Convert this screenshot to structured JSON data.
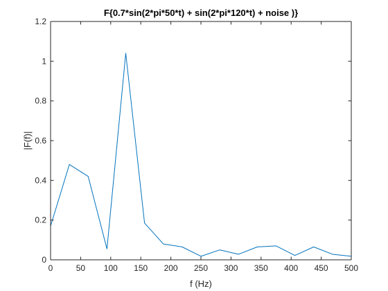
{
  "chart_data": {
    "type": "line",
    "title": "F{0.7*sin(2*pi*50*t) + sin(2*pi*120*t) + noise )}",
    "xlabel": "f (Hz)",
    "ylabel": "|F(f)|",
    "xlim": [
      0,
      500
    ],
    "ylim": [
      0,
      1.2
    ],
    "x_ticks": [
      0,
      50,
      100,
      150,
      200,
      250,
      300,
      350,
      400,
      450,
      500
    ],
    "x_tick_labels": [
      "0",
      "50",
      "100",
      "150",
      "200",
      "250",
      "300",
      "350",
      "400",
      "450",
      "500"
    ],
    "y_ticks": [
      0,
      0.2,
      0.4,
      0.6,
      0.8,
      1.0,
      1.2
    ],
    "y_tick_labels": [
      "0",
      "0.2",
      "0.4",
      "0.6",
      "0.8",
      "1",
      "1.2"
    ],
    "grid": false,
    "series": [
      {
        "color": "#0072BD",
        "x": [
          0,
          31.25,
          62.5,
          93.75,
          125,
          156.25,
          187.5,
          218.75,
          250,
          281.25,
          312.5,
          343.75,
          375,
          406.25,
          437.5,
          468.75,
          500
        ],
        "y": [
          0.17,
          0.48,
          0.42,
          0.055,
          1.04,
          0.185,
          0.08,
          0.065,
          0.018,
          0.05,
          0.028,
          0.065,
          0.07,
          0.022,
          0.065,
          0.028,
          0.018
        ]
      }
    ]
  }
}
